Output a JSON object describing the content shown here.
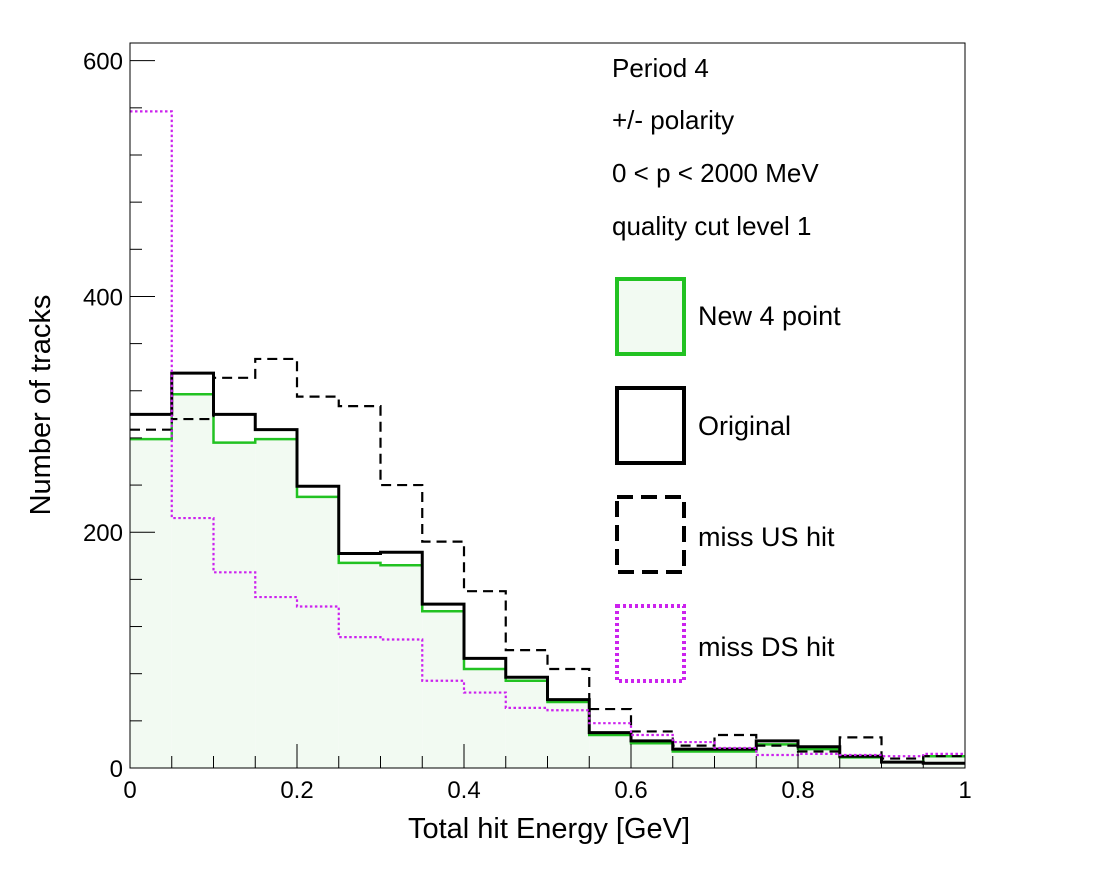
{
  "chart_data": {
    "type": "histogram",
    "xlabel": "Total hit Energy [GeV]",
    "ylabel": "Number of tracks",
    "xlim": [
      0,
      1
    ],
    "ylim": [
      0,
      615
    ],
    "bin_width": 0.05,
    "bin_edges": [
      0,
      0.05,
      0.1,
      0.15,
      0.2,
      0.25,
      0.3,
      0.35,
      0.4,
      0.45,
      0.5,
      0.55,
      0.6,
      0.65,
      0.7,
      0.75,
      0.8,
      0.85,
      0.9,
      0.95,
      1.0
    ],
    "x_major_ticks": [
      0,
      0.2,
      0.4,
      0.6,
      0.8,
      1
    ],
    "x_tick_labels": [
      "0",
      "0.2",
      "0.4",
      "0.6",
      "0.8",
      "1"
    ],
    "y_major_ticks": [
      0,
      200,
      400,
      600
    ],
    "y_tick_labels": [
      "0",
      "200",
      "400",
      "600"
    ],
    "annotations": [
      "Period 4",
      "+/- polarity",
      "0 < p < 2000 MeV",
      "quality cut level 1"
    ],
    "legend_position": "right",
    "series": [
      {
        "name": "New 4 point",
        "color": "#22c222",
        "fill": "#f2faf2",
        "style": "solid-filled",
        "values": [
          279,
          317,
          276,
          279,
          230,
          174,
          172,
          133,
          84,
          74,
          56,
          28,
          21,
          14,
          14,
          20,
          16,
          9,
          5,
          10
        ]
      },
      {
        "name": "Original",
        "color": "#000000",
        "style": "solid",
        "values": [
          300,
          335,
          300,
          287,
          239,
          182,
          183,
          139,
          93,
          77,
          58,
          30,
          23,
          16,
          16,
          23,
          18,
          10,
          5,
          4
        ]
      },
      {
        "name": "miss US hit",
        "color": "#000000",
        "style": "dashed",
        "values": [
          287,
          296,
          331,
          347,
          315,
          307,
          240,
          192,
          150,
          100,
          84,
          50,
          31,
          19,
          28,
          19,
          14,
          26,
          8,
          10
        ]
      },
      {
        "name": "miss DS hit",
        "color": "#cc22ee",
        "style": "dotted",
        "values": [
          557,
          212,
          166,
          145,
          137,
          111,
          109,
          74,
          64,
          51,
          49,
          38,
          28,
          22,
          17,
          11,
          12,
          11,
          10,
          12
        ]
      }
    ]
  }
}
